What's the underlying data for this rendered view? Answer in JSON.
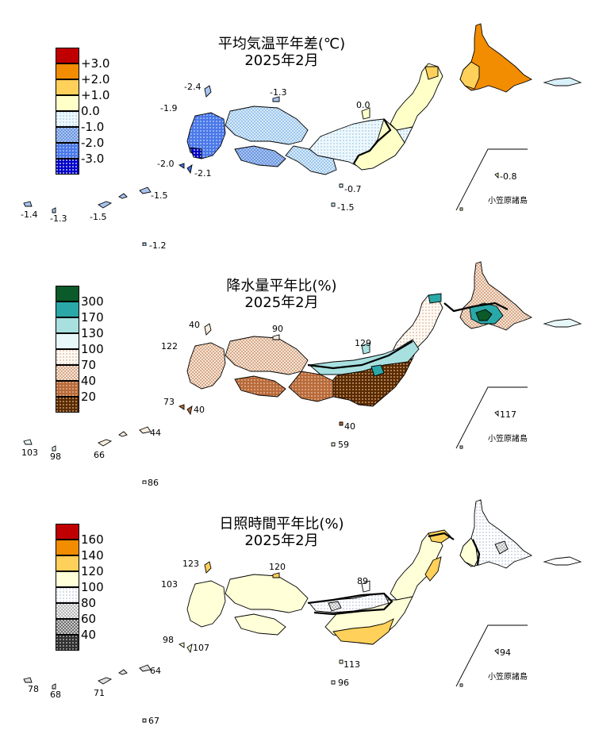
{
  "temperature": {
    "title_line1": "平均気温平年差(℃)",
    "title_line2": "2025年2月",
    "legend_labels": [
      "+3.0",
      "+2.0",
      "+1.0",
      "0.0",
      "-1.0",
      "-2.0",
      "-3.0"
    ],
    "legend_colors": [
      "#c00000",
      "#f28c00",
      "#ffd05a",
      "#ffffc8",
      "#d8f0fa",
      "#a8c4f0",
      "#4070e0",
      "#0000c8"
    ],
    "values": {
      "tsushima": "-2.4",
      "fukuoka": "-1.9",
      "oki": "-1.3",
      "sado": "0.0",
      "koshiki": "-2.0",
      "tanegashima": "-2.1",
      "hachijo": "-0.7",
      "kitadaito": "-1.5",
      "minamidaito": "-1.2",
      "amami": "-1.5",
      "naha": "-1.3",
      "yonaguni": "-1.4",
      "chichijima": "-0.8"
    },
    "ogasawara_label": "小笠原諸島"
  },
  "precipitation": {
    "title_line1": "降水量平年比(%)",
    "title_line2": "2025年2月",
    "legend_labels": [
      "300",
      "170",
      "130",
      "100",
      "70",
      "40",
      "20"
    ],
    "legend_colors": [
      "#0b5a2a",
      "#2aa8a8",
      "#a8e0e0",
      "#e8f8f8",
      "#fbeee0",
      "#eecfb8",
      "#b86a3a",
      "#5a2a00"
    ],
    "values": {
      "tsushima": "40",
      "fukuoka": "122",
      "oki": "90",
      "sado": "129",
      "koshiki": "73",
      "tanegashima": "40",
      "hachijo": "40",
      "kitadaito": "44",
      "minamidaito": "86",
      "amami": "66",
      "naha": "98",
      "yonaguni": "103",
      "miyake": "59",
      "chichijima": "117"
    },
    "ogasawara_label": "小笠原諸島"
  },
  "sunshine": {
    "title_line1": "日照時間平年比(%)",
    "title_line2": "2025年2月",
    "legend_labels": [
      "160",
      "140",
      "120",
      "100",
      "80",
      "60",
      "40"
    ],
    "legend_colors": [
      "#c00000",
      "#f28c00",
      "#ffd05a",
      "#ffffd8",
      "#ffffff",
      "#e0e0e0",
      "#909090",
      "#303030"
    ],
    "values": {
      "tsushima": "123",
      "fukuoka": "103",
      "oki": "120",
      "sado": "89",
      "koshiki": "98",
      "tanegashima": "107",
      "hachijo": "113",
      "kitadaito": "64",
      "minamidaito": "67",
      "amami": "71",
      "naha": "68",
      "yonaguni": "78",
      "miyake": "96",
      "chichijima": "94"
    },
    "ogasawara_label": "小笠原諸島"
  }
}
